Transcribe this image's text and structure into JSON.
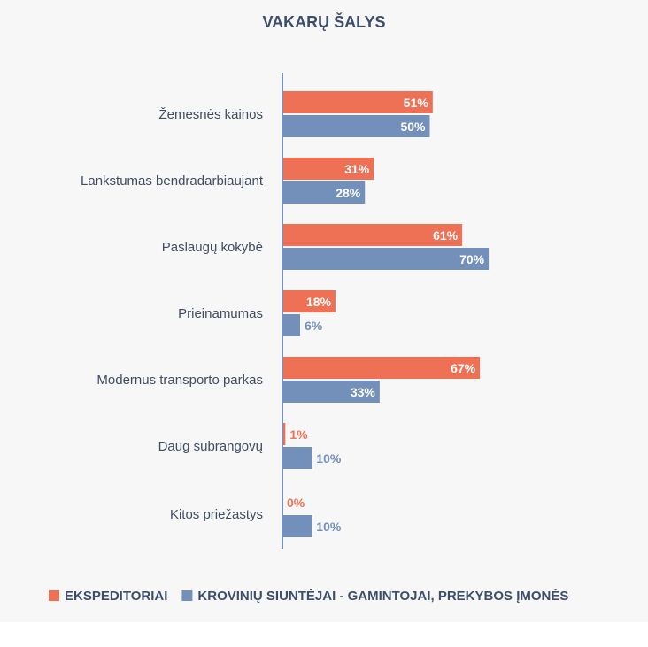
{
  "colors": {
    "background": "#f7f7f7",
    "series_1": "#ef7155",
    "series_2": "#7390bb",
    "axis": "#7390bb",
    "text": "#3d4e6b"
  },
  "chart_data": {
    "type": "bar",
    "orientation": "horizontal",
    "title": "VAKARŲ ŠALYS",
    "categories": [
      "Žemesnės kainos",
      "Lankstumas bendradarbiaujant",
      "Paslaugų kokybė",
      "Prieinamumas",
      "Modernus transporto parkas",
      "Daug subrangovų",
      "Kitos priežastys"
    ],
    "series": [
      {
        "name": "EKSPEDITORIAI",
        "color": "#ef7155",
        "values": [
          51,
          31,
          61,
          18,
          67,
          1,
          0
        ]
      },
      {
        "name": "KROVINIŲ SIUNTĖJAI - GAMINTOJAI, PREKYBOS ĮMONĖS",
        "color": "#7390bb",
        "values": [
          50,
          28,
          70,
          6,
          33,
          10,
          10
        ]
      }
    ],
    "value_suffix": "%",
    "xlim": [
      0,
      100
    ],
    "grid": false,
    "legend_position": "bottom"
  }
}
